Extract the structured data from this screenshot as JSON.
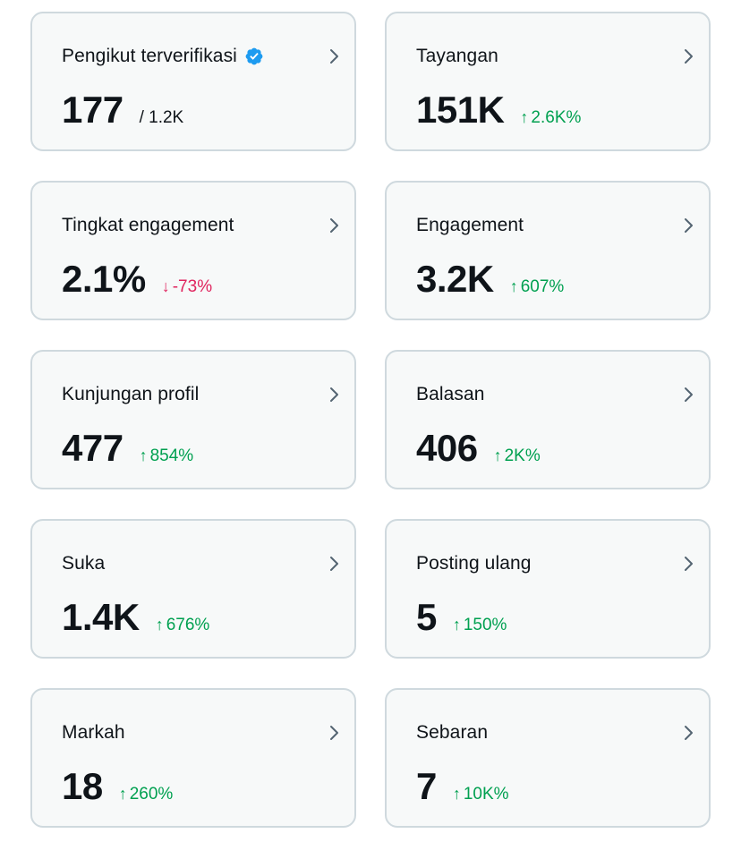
{
  "cards": [
    {
      "label": "Pengikut terverifikasi",
      "value": "177",
      "sub": "/ 1.2K",
      "verified": true
    },
    {
      "label": "Tayangan",
      "value": "151K",
      "change": "2.6K%",
      "direction": "up"
    },
    {
      "label": "Tingkat engagement",
      "value": "2.1%",
      "change": "-73%",
      "direction": "down"
    },
    {
      "label": "Engagement",
      "value": "3.2K",
      "change": "607%",
      "direction": "up"
    },
    {
      "label": "Kunjungan profil",
      "value": "477",
      "change": "854%",
      "direction": "up"
    },
    {
      "label": "Balasan",
      "value": "406",
      "change": "2K%",
      "direction": "up"
    },
    {
      "label": "Suka",
      "value": "1.4K",
      "change": "676%",
      "direction": "up"
    },
    {
      "label": "Posting ulang",
      "value": "5",
      "change": "150%",
      "direction": "up"
    },
    {
      "label": "Markah",
      "value": "18",
      "change": "260%",
      "direction": "up"
    },
    {
      "label": "Sebaran",
      "value": "7",
      "change": "10K%",
      "direction": "up"
    }
  ],
  "colors": {
    "up": "#00a050",
    "down": "#e0245e",
    "verified": "#1d9bf0"
  },
  "icons": {
    "up": "↑",
    "down": "↓"
  }
}
